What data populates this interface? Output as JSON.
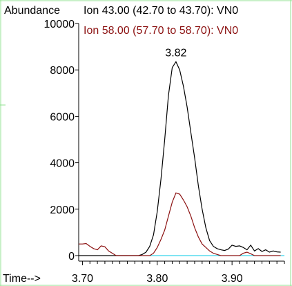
{
  "chart_data": {
    "type": "line",
    "ylabel": "Abundance",
    "xlabel": "Time-->",
    "xlim": [
      3.695,
      3.97
    ],
    "ylim": [
      0,
      10000
    ],
    "x_ticks": [
      "3.70",
      "3.80",
      "3.90"
    ],
    "y_ticks": [
      "0",
      "2000",
      "4000",
      "6000",
      "8000",
      "10000"
    ],
    "peak_label": {
      "text": "3.82",
      "x": 3.825,
      "y": 8350
    },
    "grid": false,
    "legend_position": "top",
    "colors": {
      "series1": "#000000",
      "series2": "#8b1010",
      "baseline": "#00c8e6",
      "border": "#90e090"
    },
    "series": [
      {
        "name": "Ion  43.00 (42.70 to 43.70): VN0",
        "x": [
          3.695,
          3.72,
          3.745,
          3.775,
          3.78,
          3.785,
          3.79,
          3.795,
          3.8,
          3.805,
          3.81,
          3.815,
          3.82,
          3.825,
          3.83,
          3.835,
          3.84,
          3.845,
          3.85,
          3.855,
          3.86,
          3.865,
          3.87,
          3.875,
          3.88,
          3.885,
          3.89,
          3.895,
          3.9,
          3.905,
          3.91,
          3.915,
          3.92,
          3.925,
          3.93,
          3.935,
          3.94,
          3.945,
          3.95,
          3.955,
          3.96,
          3.965
        ],
        "values": [
          0,
          0,
          0,
          0,
          50,
          150,
          400,
          900,
          1900,
          3300,
          5000,
          6900,
          8100,
          8350,
          8000,
          7300,
          6400,
          5300,
          4200,
          3000,
          2000,
          1200,
          650,
          400,
          300,
          250,
          220,
          280,
          450,
          400,
          420,
          350,
          250,
          450,
          200,
          300,
          180,
          250,
          150,
          200,
          160,
          150
        ]
      },
      {
        "name": "Ion  58.00 (57.70 to 58.70): VN0",
        "x": [
          3.695,
          3.7,
          3.705,
          3.71,
          3.715,
          3.72,
          3.725,
          3.73,
          3.735,
          3.74,
          3.745,
          3.75,
          3.755,
          3.76,
          3.765,
          3.77,
          3.775,
          3.78,
          3.785,
          3.79,
          3.795,
          3.8,
          3.805,
          3.81,
          3.815,
          3.82,
          3.825,
          3.83,
          3.835,
          3.84,
          3.845,
          3.85,
          3.855,
          3.86,
          3.865,
          3.87,
          3.875,
          3.88,
          3.885,
          3.89,
          3.895,
          3.9,
          3.905,
          3.91,
          3.915,
          3.92,
          3.925,
          3.93,
          3.935,
          3.94,
          3.945,
          3.95,
          3.955,
          3.96,
          3.965
        ],
        "values": [
          500,
          500,
          520,
          400,
          300,
          250,
          420,
          380,
          200,
          100,
          0,
          0,
          0,
          0,
          0,
          0,
          0,
          0,
          0,
          0,
          100,
          350,
          700,
          1100,
          1700,
          2300,
          2700,
          2650,
          2400,
          2100,
          1700,
          1200,
          800,
          500,
          350,
          200,
          100,
          50,
          0,
          0,
          0,
          0,
          0,
          0,
          100,
          150,
          80,
          0,
          0,
          0,
          0,
          0,
          0,
          0,
          0
        ]
      }
    ]
  }
}
